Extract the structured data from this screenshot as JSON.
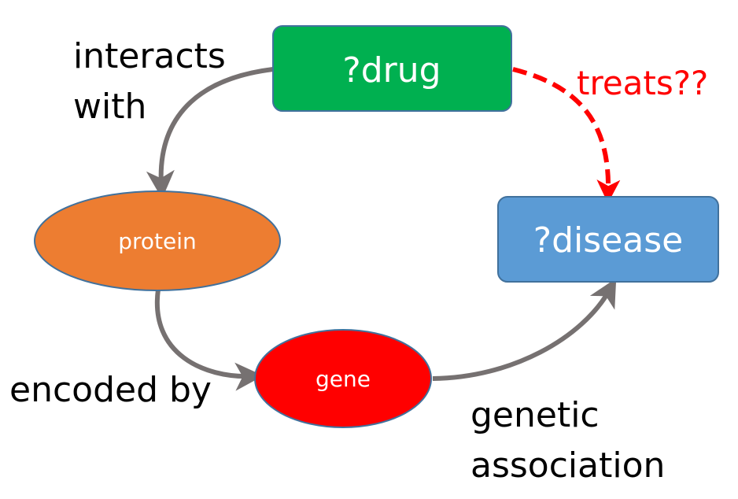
{
  "nodes": {
    "drug": {
      "label": "?drug",
      "fill": "#00B050",
      "stroke": "#41719C"
    },
    "protein": {
      "label": "protein",
      "fill": "#ED7D31",
      "stroke": "#41719C"
    },
    "gene": {
      "label": "gene",
      "fill": "#FF0000",
      "stroke": "#41719C"
    },
    "disease": {
      "label": "?disease",
      "fill": "#5B9BD5",
      "stroke": "#41719C"
    }
  },
  "edges": {
    "interacts_with": {
      "label_line1": "interacts",
      "label_line2": "with",
      "color": "#767171"
    },
    "encoded_by": {
      "label": "encoded by",
      "color": "#767171"
    },
    "genetic_association": {
      "label_line1": "genetic",
      "label_line2": "association",
      "color": "#767171"
    },
    "treats": {
      "label": "treats??",
      "color": "#FF0000",
      "style": "dashed"
    }
  }
}
